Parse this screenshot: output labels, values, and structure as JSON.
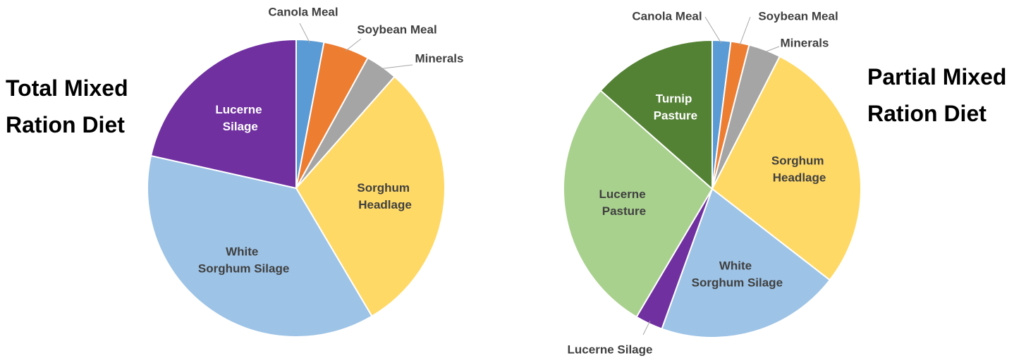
{
  "chart_data": [
    {
      "type": "pie",
      "title": "Total Mixed Ration Diet",
      "categories": [
        "Canola Meal",
        "Soybean Meal",
        "Minerals",
        "Sorghum Headlage",
        "White Sorghum Silage",
        "Lucerne Silage"
      ],
      "values": [
        3,
        5,
        3.5,
        30,
        37,
        21.5
      ],
      "colors": [
        "#5b9bd5",
        "#ed7d31",
        "#a5a5a5",
        "#ffd966",
        "#9dc3e6",
        "#7030a0"
      ]
    },
    {
      "type": "pie",
      "title": "Partial Mixed Ration Diet",
      "categories": [
        "Canola Meal",
        "Soybean Meal",
        "Minerals",
        "Sorghum Headlage",
        "White Sorghum Silage",
        "Lucerne Silage",
        "Lucerne Pasture",
        "Turnip Pasture"
      ],
      "values": [
        2,
        2,
        3.5,
        28,
        20,
        3,
        28,
        13.5
      ],
      "colors": [
        "#5b9bd5",
        "#ed7d31",
        "#a5a5a5",
        "#ffd966",
        "#9dc3e6",
        "#7030a0",
        "#a9d18e",
        "#548235"
      ]
    }
  ]
}
